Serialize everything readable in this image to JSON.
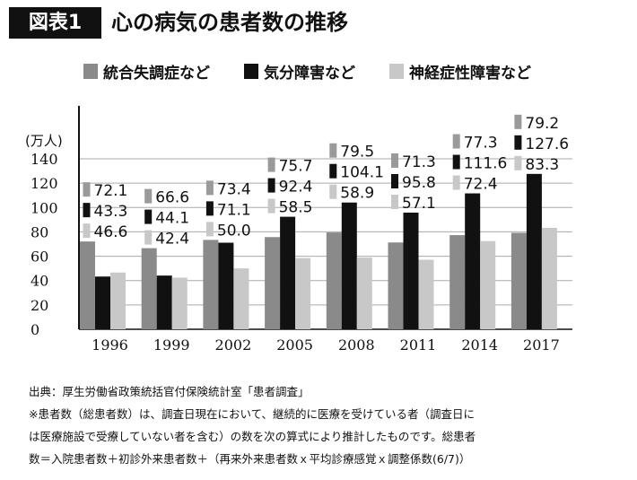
{
  "figure_label": "図表1",
  "title": "心の病気の患者数の推移",
  "chart_data": {
    "type": "bar",
    "unit_label": "(万人)",
    "categories": [
      "1996",
      "1999",
      "2002",
      "2005",
      "2008",
      "2011",
      "2014",
      "2017"
    ],
    "series": [
      {
        "name": "統合失調症など",
        "color": "#8a8a8a",
        "label_marker_color": "#9a9a9a",
        "values": [
          72.1,
          66.6,
          73.4,
          75.7,
          79.5,
          71.3,
          77.3,
          79.2
        ],
        "labels": [
          "72.1",
          "66.6",
          "73.4",
          "75.7",
          "79.5",
          "71.3",
          "77.3",
          "79.2"
        ]
      },
      {
        "name": "気分障害など",
        "color": "#111111",
        "label_marker_color": "#111111",
        "values": [
          43.3,
          44.1,
          71.1,
          92.4,
          104.1,
          95.8,
          111.6,
          127.6
        ],
        "labels": [
          "43.3",
          "44.1",
          "71.1",
          "92.4",
          "104.1",
          "95.8",
          "111.6",
          "127.6"
        ]
      },
      {
        "name": "神経症性障害など",
        "color": "#c8c8c8",
        "label_marker_color": "#c8c8c8",
        "values": [
          46.6,
          42.4,
          50.0,
          58.5,
          58.9,
          57.1,
          72.4,
          83.3
        ],
        "labels": [
          "46.6",
          "42.4",
          "50.0",
          "58.5",
          "58.9",
          "57.1",
          "72.4",
          "83.3"
        ]
      }
    ],
    "ylim": [
      0,
      140
    ],
    "yticks": [
      0,
      20,
      40,
      60,
      80,
      100,
      120,
      140
    ],
    "ytick_labels": [
      "0",
      "20",
      "40",
      "60",
      "80",
      "100",
      "120",
      "140"
    ],
    "grid": true,
    "legend_position": "top"
  },
  "footer": {
    "source": "出典：厚生労働省政策統括官付保険統計室「患者調査」",
    "note_lines": [
      "※患者数（総患者数）は、調査日現在において、継続的に医療を受けている者（調査日に",
      "は医療施設で受療していない者を含む）の数を次の算式により推計したものです。総患者",
      "数＝入院患者数＋初診外来患者数＋（再来外来患者数ｘ平均診療感覚ｘ調整係数(6/7)）"
    ]
  }
}
